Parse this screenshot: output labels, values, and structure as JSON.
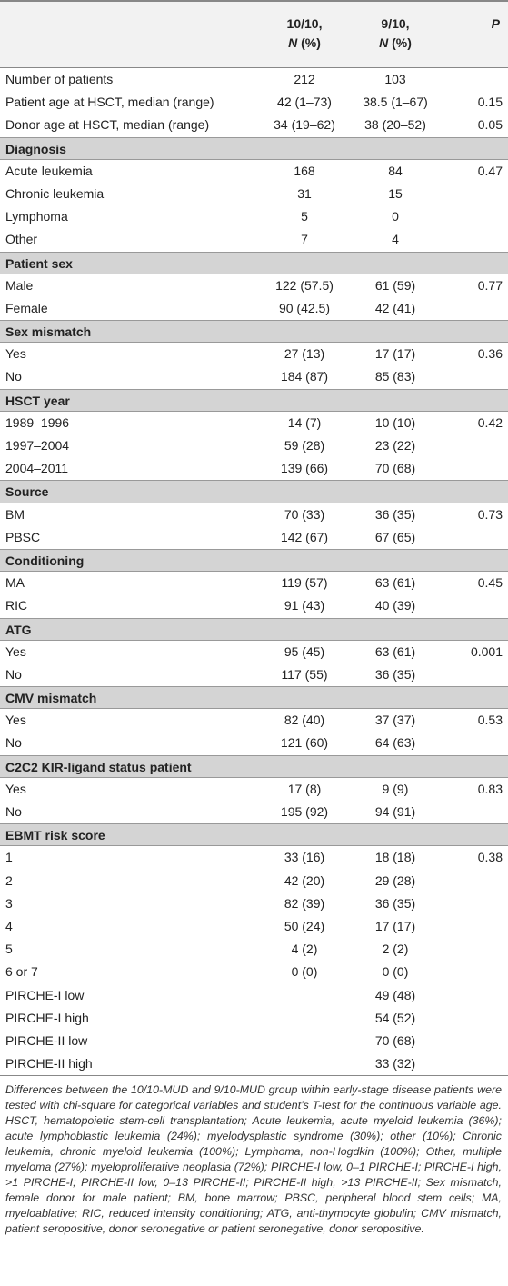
{
  "table": {
    "header": {
      "columns": [
        {
          "line1": "10/10,",
          "n": "N",
          "unit": "(%)"
        },
        {
          "line1": "9/10,",
          "n": "N",
          "unit": "(%)"
        }
      ],
      "p": "P"
    },
    "rows": [
      {
        "cells": [
          "Number of patients",
          "212",
          "103",
          null
        ]
      },
      {
        "cells": [
          "Patient age at HSCT, median (range)",
          "42 (1–73)",
          "38.5 (1–67)",
          "0.15"
        ]
      },
      {
        "cells": [
          "Donor age at HSCT, median (range)",
          "34 (19–62)",
          "38 (20–52)",
          "0.05"
        ]
      },
      {
        "section": "Diagnosis"
      },
      {
        "cells": [
          "Acute leukemia",
          "168",
          "84",
          "0.47"
        ]
      },
      {
        "cells": [
          "Chronic leukemia",
          "31",
          "15",
          null
        ]
      },
      {
        "cells": [
          "Lymphoma",
          "5",
          "0",
          null
        ]
      },
      {
        "cells": [
          "Other",
          "7",
          "4",
          null
        ]
      },
      {
        "section": "Patient sex"
      },
      {
        "cells": [
          "Male",
          "122 (57.5)",
          "61 (59)",
          "0.77"
        ]
      },
      {
        "cells": [
          "Female",
          "90 (42.5)",
          "42 (41)",
          null
        ]
      },
      {
        "section": "Sex mismatch"
      },
      {
        "cells": [
          "Yes",
          "27 (13)",
          "17 (17)",
          "0.36"
        ]
      },
      {
        "cells": [
          "No",
          "184 (87)",
          "85 (83)",
          null
        ]
      },
      {
        "section": "HSCT year"
      },
      {
        "cells": [
          "1989–1996",
          "14 (7)",
          "10 (10)",
          "0.42"
        ]
      },
      {
        "cells": [
          "1997–2004",
          "59 (28)",
          "23 (22)",
          null
        ]
      },
      {
        "cells": [
          "2004–2011",
          "139 (66)",
          "70 (68)",
          null
        ]
      },
      {
        "section": "Source"
      },
      {
        "cells": [
          "BM",
          "70 (33)",
          "36 (35)",
          "0.73"
        ]
      },
      {
        "cells": [
          "PBSC",
          "142 (67)",
          "67 (65)",
          null
        ]
      },
      {
        "section": "Conditioning"
      },
      {
        "cells": [
          "MA",
          "119 (57)",
          "63 (61)",
          "0.45"
        ]
      },
      {
        "cells": [
          "RIC",
          "91 (43)",
          "40 (39)",
          null
        ]
      },
      {
        "section": "ATG"
      },
      {
        "cells": [
          "Yes",
          "95 (45)",
          "63 (61)",
          "0.001"
        ]
      },
      {
        "cells": [
          "No",
          "117 (55)",
          "36 (35)",
          null
        ]
      },
      {
        "section": "CMV mismatch"
      },
      {
        "cells": [
          "Yes",
          "82 (40)",
          "37 (37)",
          "0.53"
        ]
      },
      {
        "cells": [
          "No",
          "121 (60)",
          "64 (63)",
          null
        ]
      },
      {
        "section": "C2C2 KIR-ligand status patient"
      },
      {
        "cells": [
          "Yes",
          "17 (8)",
          "9 (9)",
          "0.83"
        ]
      },
      {
        "cells": [
          "No",
          "195 (92)",
          "94 (91)",
          null
        ]
      },
      {
        "section": "EBMT risk score"
      },
      {
        "cells": [
          "1",
          "33 (16)",
          "18 (18)",
          "0.38"
        ]
      },
      {
        "cells": [
          "2",
          "42 (20)",
          "29 (28)",
          null
        ]
      },
      {
        "cells": [
          "3",
          "82 (39)",
          "36 (35)",
          null
        ]
      },
      {
        "cells": [
          "4",
          "50 (24)",
          "17 (17)",
          null
        ]
      },
      {
        "cells": [
          "5",
          "4 (2)",
          "2 (2)",
          null
        ]
      },
      {
        "cells": [
          "6 or 7",
          "0 (0)",
          "0 (0)",
          null
        ]
      },
      {
        "cells": [
          "PIRCHE-I low",
          null,
          "49 (48)",
          null
        ]
      },
      {
        "cells": [
          "PIRCHE-I high",
          null,
          "54 (52)",
          null
        ]
      },
      {
        "cells": [
          "PIRCHE-II low",
          null,
          "70 (68)",
          null
        ]
      },
      {
        "cells": [
          "PIRCHE-II high",
          null,
          "33 (32)",
          null
        ]
      }
    ],
    "footnote": "Differences between the 10/10-MUD and 9/10-MUD group within early-stage disease patients were tested with chi-square for categorical variables and student’s T-test for the continuous variable age. HSCT, hematopoietic stem-cell transplantation; Acute leukemia, acute myeloid leukemia (36%); acute lymphoblastic leukemia (24%); myelodysplastic syndrome (30%); other (10%); Chronic leukemia, chronic myeloid leukemia (100%); Lymphoma, non-Hogdkin (100%); Other, multiple myeloma (27%); myeloproliferative neoplasia (72%); PIRCHE-I low, 0–1 PIRCHE-I; PIRCHE-I high, >1 PIRCHE-I; PIRCHE-II low, 0–13 PIRCHE-II; PIRCHE-II high, >13 PIRCHE-II; Sex mismatch, female donor for male patient; BM, bone marrow; PBSC, peripheral blood stem cells; MA, myeloablative; RIC, reduced intensity conditioning; ATG, anti-thymocyte globulin; CMV mismatch, patient seropositive, donor seronegative or patient seronegative, donor seropositive."
  }
}
